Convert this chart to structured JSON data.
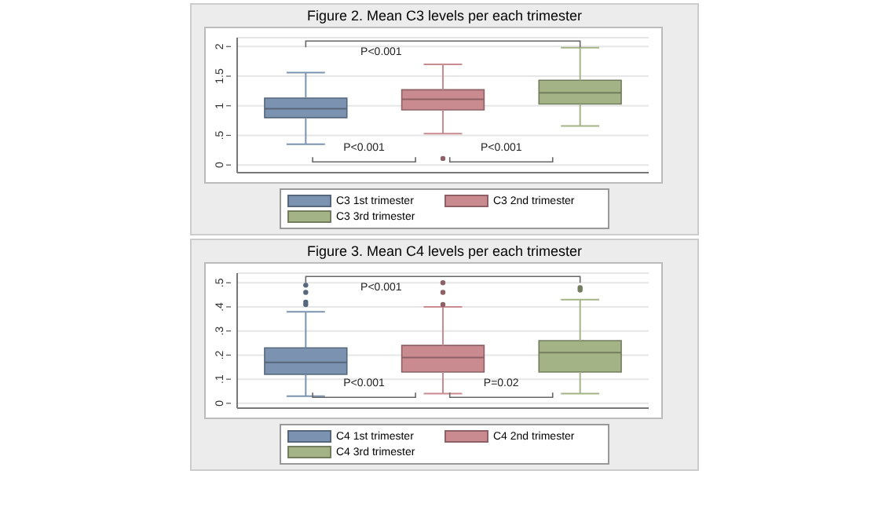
{
  "chart_data": [
    {
      "type": "box",
      "title": "Figure 2. Mean C3 levels per each trimester",
      "categories": [
        null,
        null,
        null
      ],
      "series": [
        {
          "name": "C3 1st trimester",
          "color": "#7b93b0",
          "boxes": [
            {
              "low": 0.35,
              "q1": 0.8,
              "median": 0.95,
              "q3": 1.13,
              "high": 1.56
            },
            null,
            null
          ]
        },
        {
          "name": "C3 2nd trimester",
          "color": "#c98a90",
          "boxes": [
            null,
            {
              "low": 0.53,
              "q1": 0.93,
              "median": 1.11,
              "q3": 1.27,
              "high": 1.7,
              "outliers": [
                0.11
              ]
            },
            null
          ]
        },
        {
          "name": "C3 3rd trimester",
          "color": "#a3b386",
          "boxes": [
            null,
            null,
            {
              "low": 0.66,
              "q1": 1.03,
              "median": 1.22,
              "q3": 1.43,
              "high": 1.98
            }
          ]
        }
      ],
      "ylim": [
        -0.13,
        2.15
      ],
      "yticks": [
        0,
        {
          "value": 0.5,
          "label": ".5"
        },
        1,
        1.5,
        2
      ],
      "grid": "y",
      "legend": "bottom",
      "tick_labels": "y",
      "annotations": [
        "P<0.001",
        "P<0.001",
        "P<0.001"
      ]
    },
    {
      "type": "box",
      "title": "Figure 3. Mean C4 levels per each trimester",
      "categories": [
        null,
        null,
        null
      ],
      "series": [
        {
          "name": "C4 1st trimester",
          "color": "#7b93b0",
          "boxes": [
            {
              "low": 0.03,
              "q1": 0.12,
              "median": 0.17,
              "q3": 0.23,
              "high": 0.38,
              "outliers": [
                0.49,
                0.46,
                0.42,
                0.41
              ]
            },
            null,
            null
          ]
        },
        {
          "name": "C4 2nd trimester",
          "color": "#c98a90",
          "boxes": [
            null,
            {
              "low": 0.04,
              "q1": 0.13,
              "median": 0.19,
              "q3": 0.24,
              "high": 0.4,
              "outliers": [
                0.5,
                0.46,
                0.41
              ]
            },
            null
          ]
        },
        {
          "name": "C4 3rd trimester",
          "color": "#a3b386",
          "boxes": [
            null,
            null,
            {
              "low": 0.04,
              "q1": 0.13,
              "median": 0.21,
              "q3": 0.26,
              "high": 0.43,
              "outliers": [
                0.48,
                0.47
              ]
            }
          ]
        }
      ],
      "ylim": [
        -0.02,
        0.54
      ],
      "yticks": [
        0,
        {
          "value": 0.1,
          "label": ".1"
        },
        {
          "value": 0.2,
          "label": ".2"
        },
        {
          "value": 0.3,
          "label": ".3"
        },
        {
          "value": 0.4,
          "label": ".4"
        },
        {
          "value": 0.5,
          "label": ".5"
        }
      ],
      "grid": "y",
      "legend": "bottom",
      "tick_labels": "y",
      "annotations": [
        "P<0.001",
        "P<0.001",
        "P=0.02"
      ]
    }
  ]
}
